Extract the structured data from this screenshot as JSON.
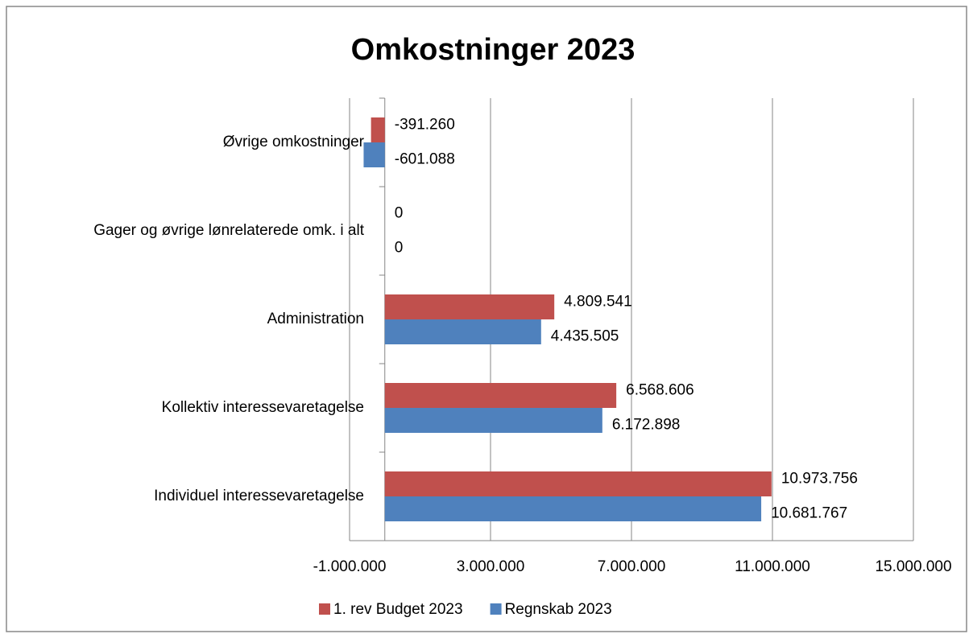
{
  "chart_data": {
    "type": "bar",
    "orientation": "horizontal",
    "title": "Omkostninger 2023",
    "categories": [
      "Individuel interessevaretagelse",
      "Kollektiv interessevaretagelse",
      "Administration",
      "Gager og øvrige lønrelaterede omk. i alt",
      "Øvrige omkostninger"
    ],
    "series": [
      {
        "name": "1. rev Budget 2023",
        "color": "#c0504d",
        "values": [
          10973756,
          6568606,
          4809541,
          0,
          -391260
        ],
        "value_labels": [
          "10.973.756",
          "6.568.606",
          "4.809.541",
          "0",
          "-391.260"
        ]
      },
      {
        "name": "Regnskab 2023",
        "color": "#4f81bd",
        "values": [
          10681767,
          6172898,
          4435505,
          0,
          -601088
        ],
        "value_labels": [
          "10.681.767",
          "6.172.898",
          "4.435.505",
          "0",
          "-601.088"
        ]
      }
    ],
    "xlim": [
      -1000000,
      15000000
    ],
    "xticks": [
      {
        "value": -1000000,
        "label": "-1.000.000"
      },
      {
        "value": 3000000,
        "label": "3.000.000"
      },
      {
        "value": 7000000,
        "label": "7.000.000"
      },
      {
        "value": 11000000,
        "label": "11.000.000"
      },
      {
        "value": 15000000,
        "label": "15.000.000"
      }
    ],
    "grid": true,
    "legend": "bottom"
  }
}
